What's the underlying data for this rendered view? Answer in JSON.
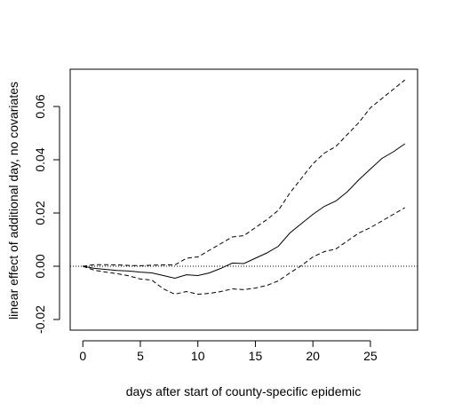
{
  "chart_data": {
    "type": "line",
    "title": "",
    "xlabel": "days after start of county-specific epidemic",
    "ylabel": "linear effect of additional day, no covariates",
    "xlim": [
      -1.1,
      29.1
    ],
    "ylim": [
      -0.024,
      0.074
    ],
    "x_ticks": [
      0,
      5,
      10,
      15,
      20,
      25
    ],
    "y_ticks": [
      -0.02,
      0.0,
      0.02,
      0.04,
      0.06
    ],
    "x_tick_labels": [
      "0",
      "5",
      "10",
      "15",
      "20",
      "25"
    ],
    "y_tick_labels": [
      "-0.02",
      "0.00",
      "0.02",
      "0.04",
      "0.06"
    ],
    "reference_line": {
      "y": 0.0,
      "style": "dotted"
    },
    "grid": false,
    "x": [
      0,
      1,
      2,
      3,
      4,
      5,
      6,
      7,
      8,
      9,
      10,
      11,
      12,
      13,
      14,
      15,
      16,
      17,
      18,
      19,
      20,
      21,
      22,
      23,
      24,
      25,
      26,
      27,
      28
    ],
    "series": [
      {
        "style": "solid",
        "values": [
          0.0,
          -0.0008,
          -0.0012,
          -0.0016,
          -0.0018,
          -0.0022,
          -0.0025,
          -0.0035,
          -0.0045,
          -0.0032,
          -0.0035,
          -0.0025,
          -0.0008,
          0.0012,
          0.001,
          0.003,
          0.005,
          0.0075,
          0.0125,
          0.016,
          0.0195,
          0.0225,
          0.0245,
          0.028,
          0.0325,
          0.0365,
          0.0405,
          0.043,
          0.046
        ]
      },
      {
        "style": "dashed",
        "values": [
          0.0,
          0.0006,
          0.0006,
          0.0005,
          0.0003,
          0.0002,
          0.0004,
          0.0005,
          0.0005,
          0.003,
          0.0035,
          0.006,
          0.0085,
          0.011,
          0.0115,
          0.0145,
          0.0175,
          0.021,
          0.0275,
          0.033,
          0.0385,
          0.0425,
          0.045,
          0.0495,
          0.054,
          0.0595,
          0.063,
          0.0665,
          0.07
        ]
      },
      {
        "style": "dashed",
        "values": [
          0.0,
          -0.0015,
          -0.0022,
          -0.0028,
          -0.0036,
          -0.0048,
          -0.0052,
          -0.0085,
          -0.0105,
          -0.0095,
          -0.0105,
          -0.0102,
          -0.0095,
          -0.0085,
          -0.0088,
          -0.0082,
          -0.0072,
          -0.0055,
          -0.0025,
          0.0002,
          0.0035,
          0.0055,
          0.0065,
          0.0095,
          0.0125,
          0.0145,
          0.017,
          0.0195,
          0.022
        ]
      }
    ]
  }
}
